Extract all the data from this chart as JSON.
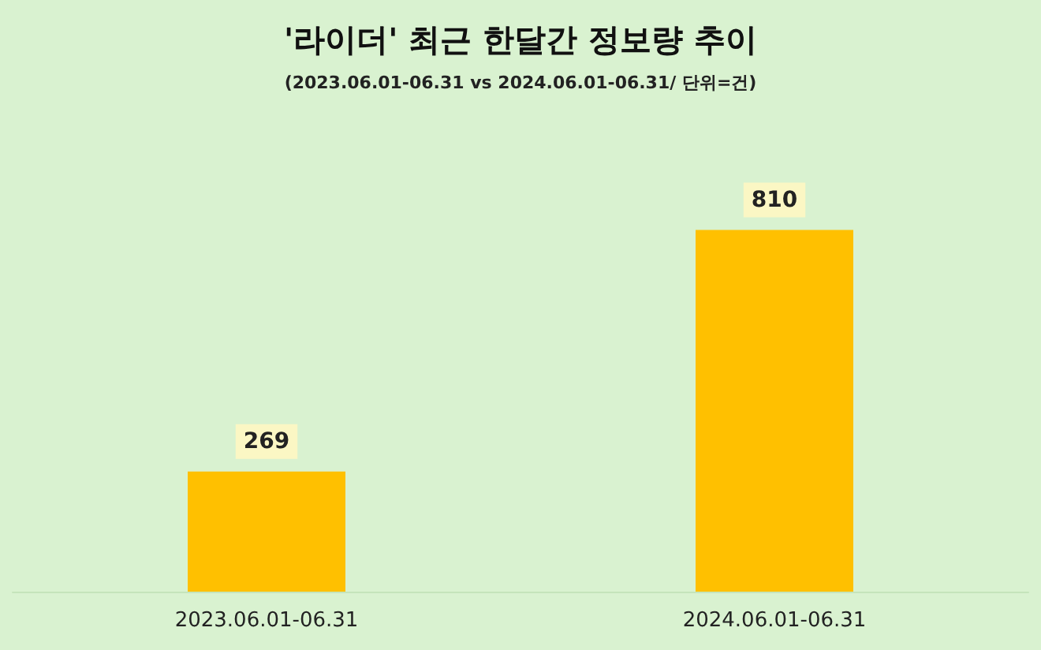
{
  "chart_data": {
    "type": "bar",
    "title": "'라이더' 최근 한달간 정보량 추이",
    "subtitle": "(2023.06.01-06.31 vs 2024.06.01-06.31/ 단위=건)",
    "categories": [
      "2023.06.01-06.31",
      "2024.06.01-06.31"
    ],
    "values": [
      269,
      810
    ],
    "color": "#ffc000",
    "data_labels": true
  }
}
